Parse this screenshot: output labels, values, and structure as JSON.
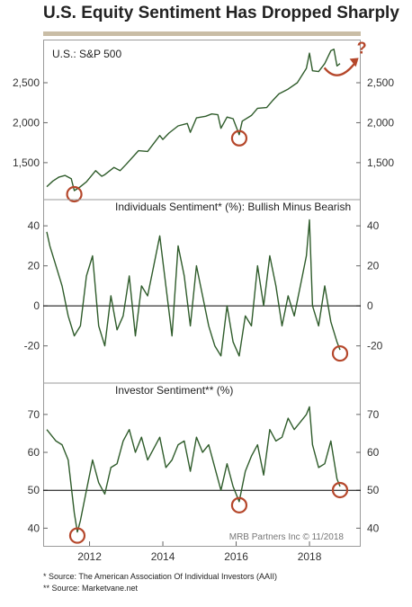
{
  "title": "U.S. Equity Sentiment Has Dropped Sharply",
  "footnotes": [
    "*  Source: The American Association Of Individual Investors (AAII)",
    "** Source: Marketvane.net"
  ],
  "colors": {
    "line": "#2f5c2b",
    "circle": "#b5472b",
    "title_bar": "#c9bda6"
  },
  "chart_data": [
    {
      "type": "line",
      "title": "",
      "panel_label": "U.S.:     S&P 500",
      "x": [
        "2010-11",
        "2011-01",
        "2011-03",
        "2011-05",
        "2011-07",
        "2011-08",
        "2011-10",
        "2011-12",
        "2012-03",
        "2012-05",
        "2012-06",
        "2012-09",
        "2012-11",
        "2013-01",
        "2013-05",
        "2013-08",
        "2013-12",
        "2014-01",
        "2014-03",
        "2014-06",
        "2014-09",
        "2014-10",
        "2014-12",
        "2015-03",
        "2015-05",
        "2015-07",
        "2015-08",
        "2015-10",
        "2015-12",
        "2016-02",
        "2016-03",
        "2016-06",
        "2016-08",
        "2016-11",
        "2017-01",
        "2017-03",
        "2017-06",
        "2017-09",
        "2017-12",
        "2018-01",
        "2018-02",
        "2018-04",
        "2018-06",
        "2018-08",
        "2018-09",
        "2018-10",
        "2018-11"
      ],
      "values": [
        1200,
        1270,
        1320,
        1340,
        1300,
        1150,
        1200,
        1260,
        1400,
        1330,
        1350,
        1440,
        1400,
        1480,
        1650,
        1640,
        1840,
        1790,
        1870,
        1960,
        1990,
        1880,
        2060,
        2080,
        2110,
        2100,
        1930,
        2070,
        2050,
        1850,
        2020,
        2090,
        2180,
        2190,
        2280,
        2360,
        2420,
        2500,
        2680,
        2870,
        2650,
        2640,
        2740,
        2900,
        2920,
        2710,
        2740
      ],
      "yticks": [
        1500,
        2000,
        2500
      ],
      "ytick_labels": [
        "1,500",
        "2,000",
        "2,500"
      ],
      "ylim": [
        1150,
        2950
      ],
      "circled": [
        "2011-08",
        "2016-02"
      ],
      "annotation": "?"
    },
    {
      "type": "line",
      "title": "Individuals Sentiment* (%): Bullish Minus Bearish",
      "x": [
        "2010-11",
        "2010-12",
        "2011-02",
        "2011-04",
        "2011-06",
        "2011-08",
        "2011-10",
        "2011-12",
        "2012-02",
        "2012-04",
        "2012-06",
        "2012-08",
        "2012-10",
        "2012-12",
        "2013-02",
        "2013-04",
        "2013-06",
        "2013-08",
        "2013-10",
        "2013-12",
        "2014-02",
        "2014-04",
        "2014-06",
        "2014-08",
        "2014-10",
        "2014-12",
        "2015-02",
        "2015-04",
        "2015-06",
        "2015-08",
        "2015-10",
        "2015-12",
        "2016-02",
        "2016-04",
        "2016-06",
        "2016-08",
        "2016-10",
        "2016-12",
        "2017-02",
        "2017-04",
        "2017-06",
        "2017-08",
        "2017-10",
        "2017-12",
        "2018-01",
        "2018-02",
        "2018-04",
        "2018-06",
        "2018-08",
        "2018-10",
        "2018-11"
      ],
      "values": [
        37,
        30,
        20,
        10,
        -5,
        -15,
        -10,
        15,
        25,
        -10,
        -20,
        5,
        -12,
        -5,
        15,
        -15,
        10,
        5,
        20,
        35,
        10,
        -15,
        30,
        15,
        -10,
        20,
        5,
        -10,
        -20,
        -25,
        0,
        -18,
        -25,
        -5,
        -10,
        20,
        0,
        25,
        10,
        -10,
        5,
        -5,
        10,
        25,
        43,
        0,
        -10,
        10,
        -8,
        -18,
        -22
      ],
      "yticks": [
        -20,
        0,
        20,
        40
      ],
      "ytick_labels": [
        "-20",
        "0",
        "20",
        "40"
      ],
      "ylim": [
        -35,
        45
      ],
      "circled": [
        "2018-11"
      ]
    },
    {
      "type": "line",
      "title": "Investor Sentiment** (%)",
      "x": [
        "2010-11",
        "2010-12",
        "2011-02",
        "2011-04",
        "2011-06",
        "2011-08",
        "2011-09",
        "2011-10",
        "2011-12",
        "2012-02",
        "2012-04",
        "2012-06",
        "2012-08",
        "2012-10",
        "2012-12",
        "2013-02",
        "2013-04",
        "2013-06",
        "2013-08",
        "2013-10",
        "2013-12",
        "2014-02",
        "2014-04",
        "2014-06",
        "2014-08",
        "2014-10",
        "2014-12",
        "2015-02",
        "2015-04",
        "2015-06",
        "2015-08",
        "2015-10",
        "2015-12",
        "2016-02",
        "2016-04",
        "2016-06",
        "2016-08",
        "2016-10",
        "2016-12",
        "2017-02",
        "2017-04",
        "2017-06",
        "2017-08",
        "2017-10",
        "2017-12",
        "2018-01",
        "2018-02",
        "2018-04",
        "2018-06",
        "2018-08",
        "2018-09",
        "2018-10",
        "2018-11"
      ],
      "values": [
        66,
        65,
        63,
        62,
        58,
        44,
        39,
        42,
        50,
        58,
        52,
        49,
        56,
        57,
        63,
        66,
        60,
        64,
        58,
        61,
        64,
        56,
        58,
        62,
        63,
        55,
        64,
        60,
        62,
        56,
        50,
        57,
        51,
        47,
        55,
        59,
        62,
        54,
        66,
        63,
        64,
        69,
        66,
        68,
        70,
        72,
        62,
        56,
        57,
        63,
        58,
        53,
        51
      ],
      "yticks": [
        40,
        50,
        60,
        70
      ],
      "ytick_labels": [
        "40",
        "50",
        "60",
        "70"
      ],
      "ylim": [
        37,
        74
      ],
      "circled": [
        "2011-09",
        "2016-02",
        "2018-11"
      ],
      "xticks": [
        "2012",
        "2014",
        "2016",
        "2018"
      ],
      "source": "MRB Partners Inc © 11/2018"
    }
  ]
}
